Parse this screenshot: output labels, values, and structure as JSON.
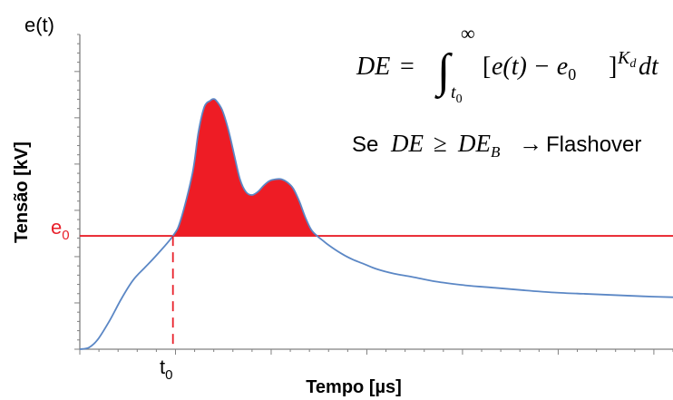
{
  "chart_data": {
    "type": "line",
    "y_axis_top_label": "e(t)",
    "ylabel": "Tensão [kV]",
    "xlabel": "Tempo [µs]",
    "threshold_label": "e",
    "threshold_subscript": "0",
    "t0_label": "t",
    "t0_subscript": "0",
    "grid": false,
    "legend": "none",
    "colors": {
      "curve": "#5b87c5",
      "fill": "#ee1c25",
      "threshold": "#e8202a",
      "axis": "#808080"
    },
    "xlim": [
      0,
      100
    ],
    "ylim": [
      0,
      100
    ],
    "threshold_value": 36,
    "t0": 15.7,
    "series": [
      {
        "x": [
          0,
          1.5,
          3,
          5,
          7,
          9,
          11,
          13,
          15.7,
          17,
          19,
          20,
          21,
          22,
          22.5,
          23,
          24,
          25,
          26,
          27,
          28,
          29,
          30,
          31,
          32,
          33,
          34,
          35,
          36,
          37,
          38,
          39,
          40,
          41,
          42,
          44,
          46,
          48,
          50,
          53,
          56,
          60,
          65,
          70,
          75,
          80,
          85,
          90,
          95,
          100
        ],
        "y": [
          0,
          0.5,
          3,
          9,
          16,
          22,
          26,
          30,
          36,
          41,
          56,
          69,
          77,
          79,
          79.5,
          79,
          76,
          70,
          62,
          54,
          50,
          49,
          50,
          52,
          53.5,
          54,
          54,
          53,
          51,
          47,
          42,
          38,
          36,
          34.5,
          33,
          30.5,
          28.5,
          27,
          25.5,
          24,
          23,
          21.5,
          20.3,
          19.5,
          18.7,
          18,
          17.6,
          17.2,
          16.8,
          16.5
        ]
      }
    ],
    "annotations": {
      "formula": {
        "lhs": "DE",
        "equals": "=",
        "integral": "∫",
        "lower_limit_var": "t",
        "lower_limit_sub": "0",
        "upper_limit": "∞",
        "bracket_open": "[",
        "inner": "e(t) − e",
        "inner_sub": "0",
        "bracket_close": "]",
        "exponent_var": "K",
        "exponent_sub": "d",
        "differential": "dt"
      },
      "condition": {
        "prefix": "Se",
        "lhs": "DE",
        "relation": "≥",
        "rhs": "DE",
        "rhs_sub": "B",
        "arrow": "→",
        "result": "Flashover"
      }
    }
  }
}
